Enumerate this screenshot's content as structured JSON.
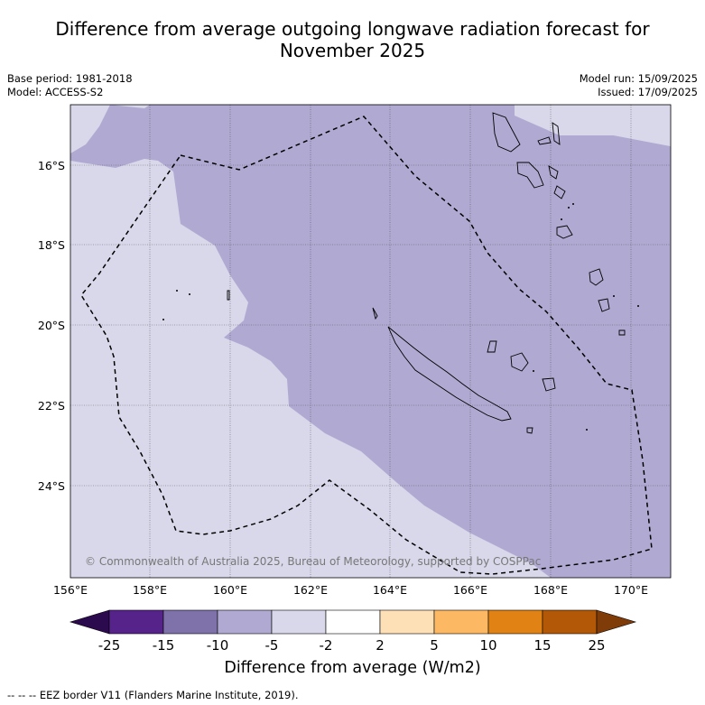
{
  "header": {
    "title_line1": "Difference from average outgoing longwave radiation forecast for",
    "title_line2": "November 2025",
    "base_period": "Base period: 1981-2018",
    "model": "Model: ACCESS-S2",
    "model_run": "Model run: 15/09/2025",
    "issued": "Issued: 17/09/2025"
  },
  "map": {
    "lon_labels": [
      "156°E",
      "158°E",
      "160°E",
      "162°E",
      "164°E",
      "166°E",
      "168°E",
      "170°E"
    ],
    "lat_labels": [
      "16°S",
      "18°S",
      "20°S",
      "22°S",
      "24°S"
    ],
    "credit": "© Commonwealth of Australia 2025, Bureau of Meteorology, supported by COSPPac",
    "colors": {
      "band_-5_-2": "#d8d8ea",
      "band_-10_-5": "#b0aad2",
      "land_outline": "#000000",
      "eez_border": "#000000"
    }
  },
  "colorbar": {
    "ticks": [
      "-25",
      "-15",
      "-10",
      "-5",
      "-2",
      "2",
      "5",
      "10",
      "15",
      "25"
    ],
    "colors": [
      "#2c0a4e",
      "#56238b",
      "#7f72ab",
      "#b0aad2",
      "#d8d8ea",
      "#ffffff",
      "#fee0b6",
      "#fdb863",
      "#e08214",
      "#b35806",
      "#7f3b08"
    ],
    "label": "Difference from average (W/m2)"
  },
  "footnote": "--  --  -- EEZ border V11 (Flanders Marine Institute, 2019)."
}
